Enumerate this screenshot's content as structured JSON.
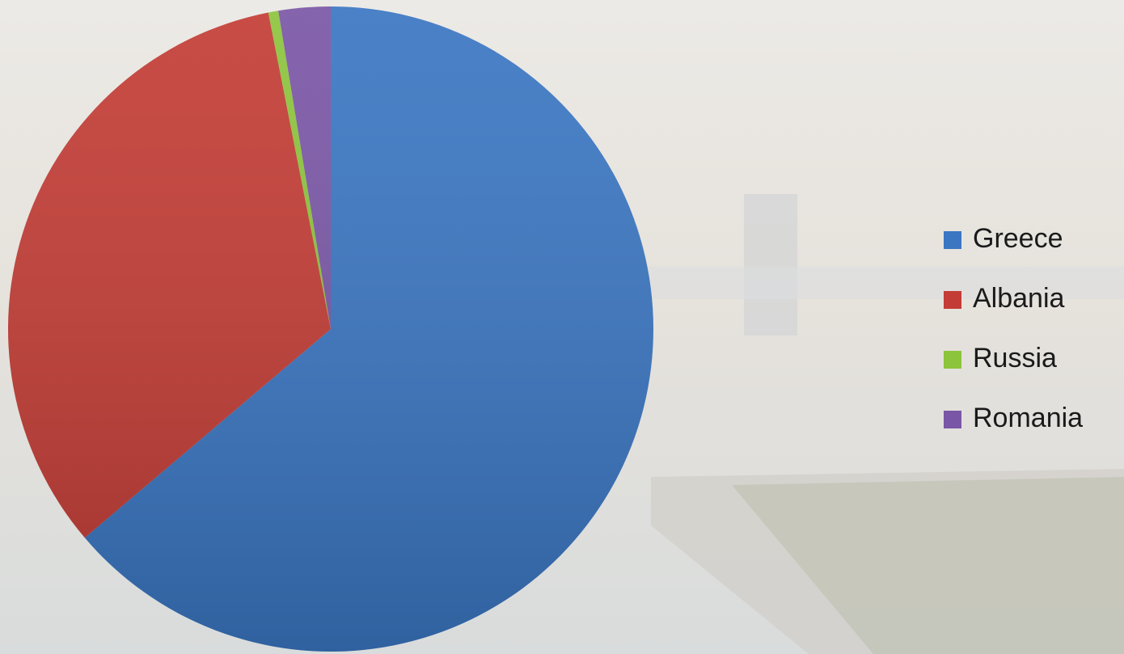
{
  "chart_data": {
    "type": "pie",
    "categories": [
      "Greece",
      "Albania",
      "Russia",
      "Romania"
    ],
    "values": [
      63.8,
      33.1,
      0.5,
      2.6
    ],
    "colors": [
      "#3a76c2",
      "#c33c35",
      "#8cc43c",
      "#7a56a6"
    ],
    "legend": "right"
  }
}
